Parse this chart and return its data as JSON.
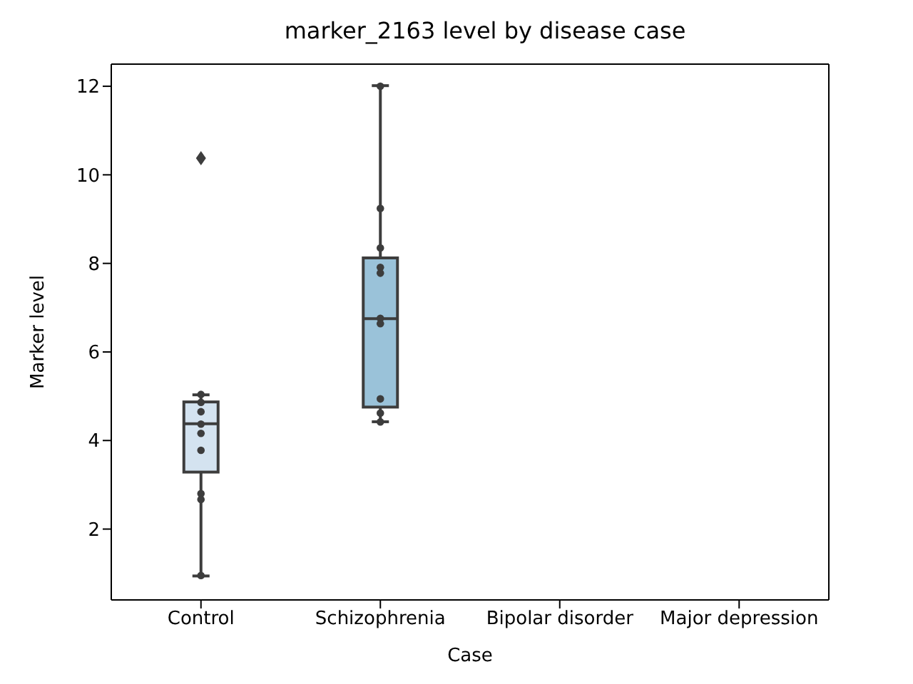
{
  "chart_data": {
    "type": "box",
    "title": "marker_2163 level by disease case",
    "xlabel": "Case",
    "ylabel": "Marker level",
    "categories": [
      "Control",
      "Schizophrenia",
      "Bipolar disorder",
      "Major depression"
    ],
    "boxes": [
      {
        "low": 0.95,
        "q1": 3.29,
        "median": 4.38,
        "q3": 4.87,
        "high": 5.03,
        "outliers": [
          10.36
        ]
      },
      {
        "low": 4.43,
        "q1": 4.76,
        "median": 6.75,
        "q3": 8.12,
        "high": 12.0
      },
      null,
      null
    ],
    "colors": [
      "#d4e3f0",
      "#9ac2d9",
      null,
      null
    ],
    "ylim": [
      0.4,
      12.5
    ],
    "yticks": [
      2,
      4,
      6,
      8,
      10,
      12
    ],
    "series": [
      {
        "type": "scatter",
        "color": "#3d3d3d",
        "x": [
          "Control",
          "Control",
          "Control",
          "Control",
          "Control",
          "Control",
          "Control",
          "Control",
          "Control",
          "Schizophrenia",
          "Schizophrenia",
          "Schizophrenia",
          "Schizophrenia",
          "Schizophrenia",
          "Schizophrenia",
          "Schizophrenia",
          "Schizophrenia",
          "Schizophrenia",
          "Schizophrenia",
          "Schizophrenia"
        ],
        "values": [
          5.04,
          4.86,
          4.65,
          4.37,
          4.16,
          3.78,
          2.8,
          2.67,
          0.95,
          12.0,
          9.24,
          8.35,
          7.91,
          7.78,
          6.76,
          6.64,
          4.94,
          4.62,
          null,
          4.42
        ]
      }
    ]
  }
}
